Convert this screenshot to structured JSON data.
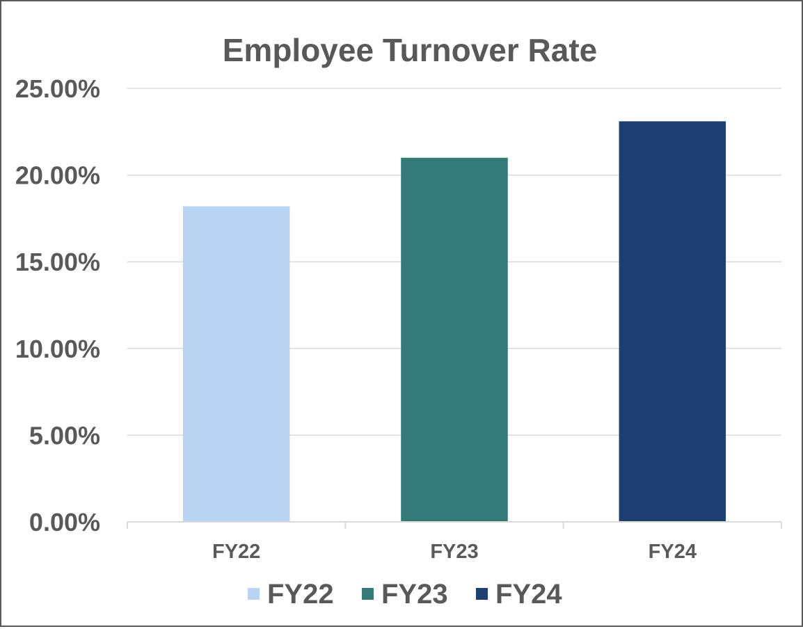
{
  "chart_data": {
    "type": "bar",
    "title": "Employee Turnover Rate",
    "categories": [
      "FY22",
      "FY23",
      "FY24"
    ],
    "values": [
      18.2,
      21.0,
      23.1
    ],
    "colors": [
      "#b8d4f2",
      "#347a79",
      "#1f3f73"
    ],
    "y_ticks": [
      "0.00%",
      "5.00%",
      "10.00%",
      "15.00%",
      "20.00%",
      "25.00%"
    ],
    "ylim": [
      0,
      25
    ],
    "grid": true,
    "legend": {
      "position": "bottom",
      "entries": [
        "FY22",
        "FY23",
        "FY24"
      ]
    }
  }
}
